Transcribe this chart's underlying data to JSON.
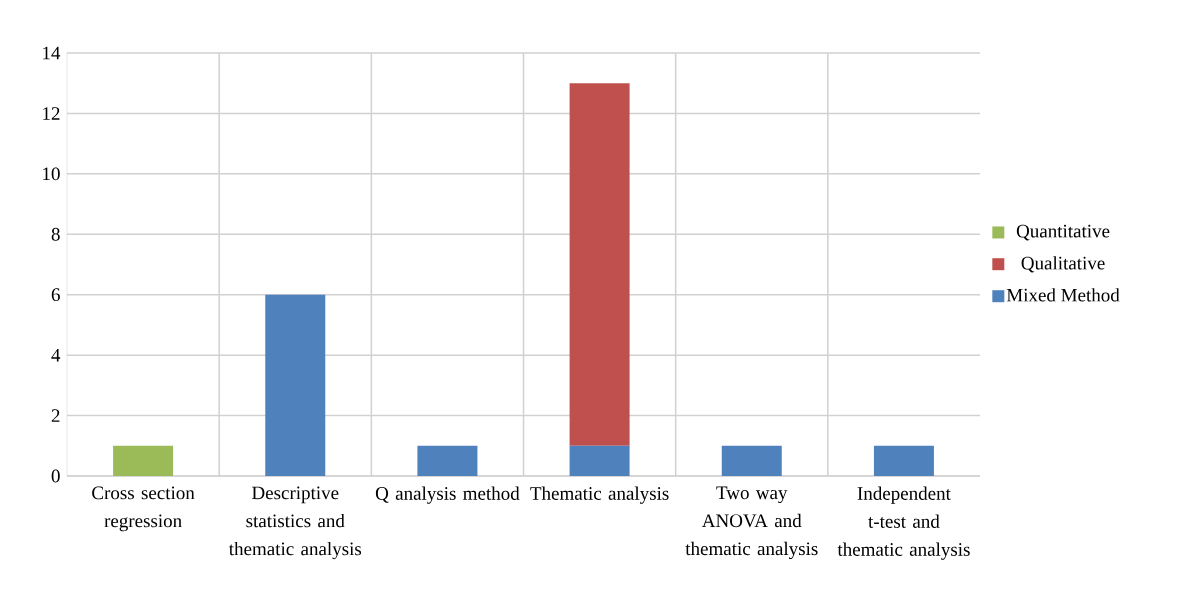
{
  "chart_data": {
    "type": "bar",
    "stacked": true,
    "categories": [
      "Cross section regression",
      "Descriptive statistics and thematic analysis",
      "Q analysis method",
      "Thematic analysis",
      "Two way ANOVA and thematic analysis",
      "Independent t-test and thematic analysis"
    ],
    "series": [
      {
        "name": "Mixed Method",
        "color": "#4f81bd",
        "values": [
          0,
          6,
          1,
          1,
          1,
          1
        ]
      },
      {
        "name": "Qualitative",
        "color": "#c0504d",
        "values": [
          0,
          0,
          0,
          12,
          0,
          0
        ]
      },
      {
        "name": "Quantitative",
        "color": "#9bbb59",
        "values": [
          1,
          0,
          0,
          0,
          0,
          0
        ]
      }
    ],
    "ylim": [
      0,
      14
    ],
    "yticks": [
      0,
      2,
      4,
      6,
      8,
      10,
      12,
      14
    ],
    "grid": true,
    "legend": "right"
  }
}
